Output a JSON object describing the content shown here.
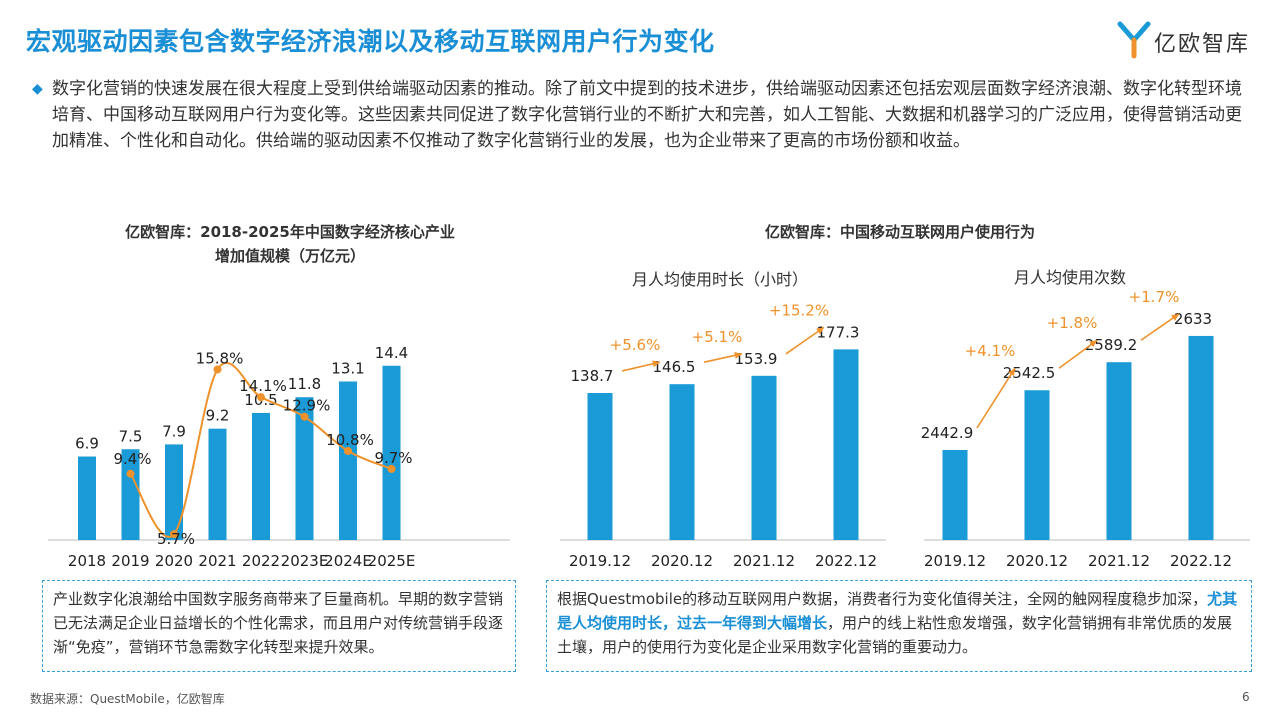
{
  "header": {
    "title": "宏观驱动因素包含数字经济浪潮以及移动互联网用户行为变化",
    "logo_text": "亿欧智库"
  },
  "intro": {
    "text": "数字化营销的快速发展在很大程度上受到供给端驱动因素的推动。除了前文中提到的技术进步，供给端驱动因素还包括宏观层面数字经济浪潮、数字化转型环境培育、中国移动互联网用户行为变化等。这些因素共同促进了数字化营销行业的不断扩大和完善，如人工智能、大数据和机器学习的广泛应用，使得营销活动更加精准、个性化和自动化。供给端的驱动因素不仅推动了数字化营销行业的发展，也为企业带来了更高的市场份额和收益。"
  },
  "colors": {
    "bar": "#1a9ad6",
    "line": "#f0922b",
    "title": "#1a8fd6"
  },
  "chart_left": {
    "title_line1": "亿欧智库：2018-2025年中国数字经济核心产业",
    "title_line2": "增加值规模（万亿元）"
  },
  "chart_right": {
    "title": "亿欧智库：中国移动互联网用户使用行为",
    "sub1": "月人均使用时长（小时）",
    "sub2": "月人均使用次数"
  },
  "chart_data": [
    {
      "type": "bar",
      "categories": [
        "2018",
        "2019",
        "2020",
        "2021",
        "2022",
        "2023E",
        "2024E",
        "2025E"
      ],
      "series": [
        {
          "values": [
            6.9,
            7.5,
            7.9,
            9.2,
            10.5,
            11.8,
            13.1,
            14.4
          ],
          "labels": [
            "6.9",
            "7.5",
            "7.9",
            "9.2",
            "10.5",
            "11.8",
            "13.1",
            "14.4"
          ]
        },
        {
          "type": "line",
          "values": [
            null,
            9.4,
            5.7,
            15.8,
            14.1,
            12.9,
            10.8,
            9.7
          ],
          "labels": [
            "",
            "9.4%",
            "5.7%",
            "15.8%",
            "14.1%",
            "12.9%",
            "10.8%",
            "9.7%"
          ]
        }
      ]
    },
    {
      "type": "bar",
      "categories": [
        "2019.12",
        "2020.12",
        "2021.12",
        "2022.12"
      ],
      "series": [
        {
          "values": [
            138.7,
            146.5,
            153.9,
            177.3
          ],
          "labels": [
            "138.7",
            "146.5",
            "153.9",
            "177.3"
          ]
        }
      ],
      "growth": [
        "+5.6%",
        "+5.1%",
        "+15.2%"
      ]
    },
    {
      "type": "bar",
      "categories": [
        "2019.12",
        "2020.12",
        "2021.12",
        "2022.12"
      ],
      "series": [
        {
          "values": [
            2442.9,
            2542.5,
            2589.2,
            2633
          ],
          "labels": [
            "2442.9",
            "2542.5",
            "2589.2",
            "2633"
          ]
        }
      ],
      "growth": [
        "+4.1%",
        "+1.8%",
        "+1.7%"
      ]
    }
  ],
  "box_left": {
    "text": "产业数字化浪潮给中国数字服务商带来了巨量商机。早期的数字营销已无法满足企业日益增长的个性化需求，而且用户对传统营销手段逐渐“免疫”，营销环节急需数字化转型来提升效果。"
  },
  "box_right": {
    "text_a": "根据Questmobile的移动互联网用户数据，消费者行为变化值得关注，全网的触网程度稳步加深，",
    "highlight": "尤其是人均使用时长，过去一年得到大幅增长",
    "text_b": "，用户的线上粘性愈发增强，数字化营销拥有非常优质的发展土壤，用户的使用行为变化是企业采用数字化营销的重要动力。"
  },
  "footer": {
    "source": "数据来源：QuestMobile，亿欧智库",
    "page": "6"
  }
}
